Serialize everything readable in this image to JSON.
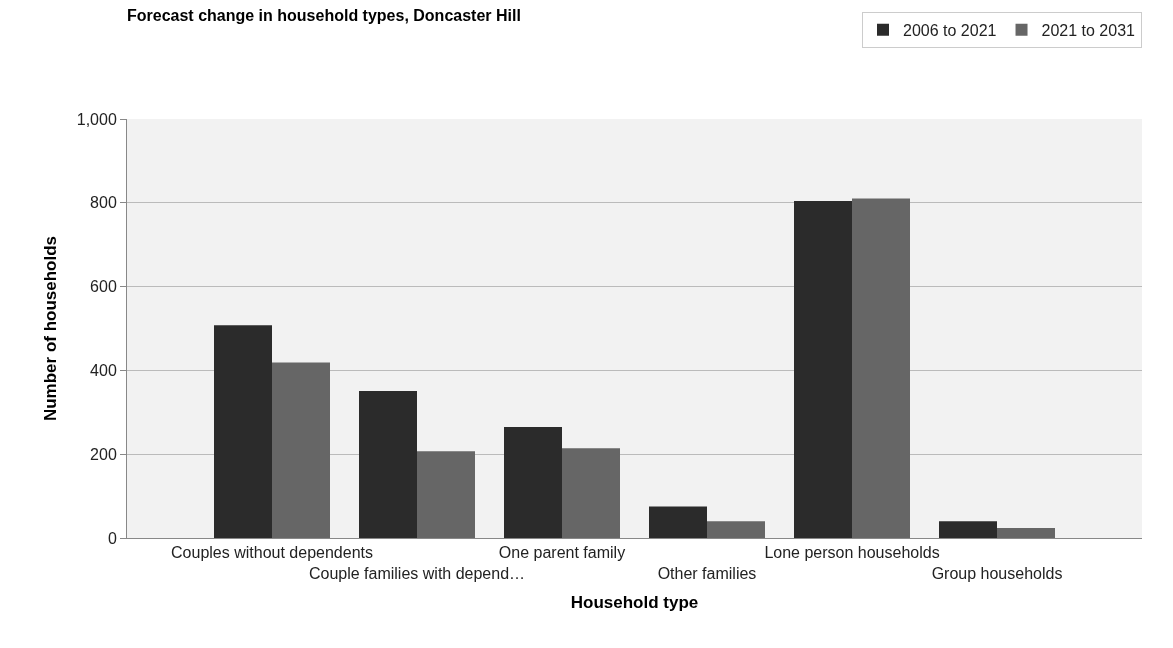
{
  "chart_data": {
    "type": "bar",
    "title": "Forecast change in household types, Doncaster Hill",
    "xlabel": "Household type",
    "ylabel": "Number of households",
    "categories": [
      "Couples without dependents",
      "Couple families with depend…",
      "One parent family",
      "Other families",
      "Lone person households",
      "Group households"
    ],
    "series": [
      {
        "name": "2006 to 2021",
        "color": "#2b2b2b",
        "values": [
          508,
          351,
          265,
          75,
          804,
          40
        ]
      },
      {
        "name": "2021 to 2031",
        "color": "#666666",
        "values": [
          419,
          207,
          214,
          40,
          810,
          24
        ]
      }
    ],
    "ylim": [
      0,
      1000
    ],
    "yticks": [
      0,
      200,
      400,
      600,
      800,
      {
        "value": 1000,
        "label": "1,000"
      }
    ],
    "grid": "y",
    "legend": "top right"
  }
}
